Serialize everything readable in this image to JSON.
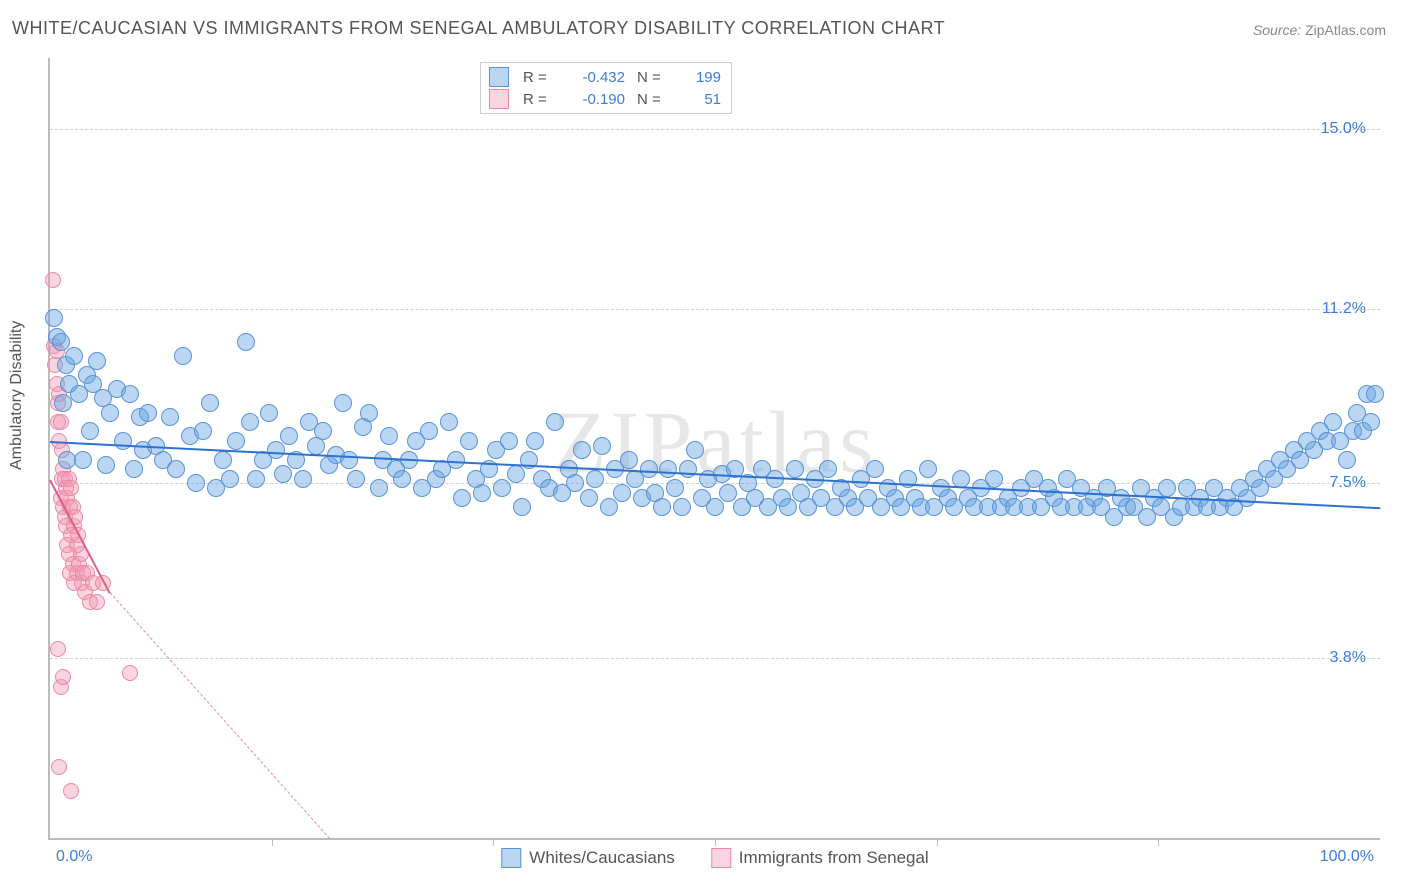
{
  "title": "WHITE/CAUCASIAN VS IMMIGRANTS FROM SENEGAL AMBULATORY DISABILITY CORRELATION CHART",
  "source": {
    "label": "Source: ",
    "name": "ZipAtlas.com"
  },
  "watermark": "ZIPatlas",
  "axes": {
    "ylabel": "Ambulatory Disability",
    "xmin": 0.0,
    "xmax": 100.0,
    "ymin": 0.0,
    "ymax": 16.5,
    "xlabel_min": "0.0%",
    "xlabel_max": "100.0%",
    "yticks": [
      {
        "v": 3.8,
        "label": "3.8%"
      },
      {
        "v": 7.5,
        "label": "7.5%"
      },
      {
        "v": 11.2,
        "label": "11.2%"
      },
      {
        "v": 15.0,
        "label": "15.0%"
      }
    ],
    "xticks": [
      16.67,
      33.33,
      50.0,
      66.67,
      83.33
    ],
    "grid_color": "#d0d0d0",
    "axis_color": "#bbbbbb"
  },
  "series": {
    "blue": {
      "label": "Whites/Caucasians",
      "fill": "rgba(103,163,226,0.45)",
      "stroke": "#5a94d6",
      "radius": 9,
      "R": "-0.432",
      "N": "199",
      "reg": {
        "x1": 0,
        "y1": 8.4,
        "x2": 100,
        "y2": 7.0,
        "color": "#2d72cf"
      }
    },
    "pink": {
      "label": "Immigrants from Senegal",
      "fill": "rgba(244,153,178,0.42)",
      "stroke": "#e989a6",
      "radius": 8,
      "R": "-0.190",
      "N": "51",
      "reg_solid": {
        "x1": 0,
        "y1": 7.6,
        "x2": 4.5,
        "y2": 5.2,
        "color": "#e05d87"
      },
      "reg_dash": {
        "x1": 4.5,
        "y1": 5.2,
        "x2": 21,
        "y2": 0.0,
        "color": "#e989a6"
      }
    }
  },
  "style": {
    "plot_bg": "#ffffff",
    "tick_label_color": "#3b7dd8",
    "title_color": "#555555",
    "label_fontsize": 16,
    "title_fontsize": 18
  },
  "blue_points": [
    [
      0.3,
      11.0
    ],
    [
      0.5,
      10.6
    ],
    [
      0.8,
      10.5
    ],
    [
      1.0,
      9.2
    ],
    [
      1.2,
      10.0
    ],
    [
      1.3,
      8.0
    ],
    [
      1.4,
      9.6
    ],
    [
      1.8,
      10.2
    ],
    [
      2.2,
      9.4
    ],
    [
      2.5,
      8.0
    ],
    [
      2.8,
      9.8
    ],
    [
      3.0,
      8.6
    ],
    [
      3.2,
      9.6
    ],
    [
      3.5,
      10.1
    ],
    [
      4.0,
      9.3
    ],
    [
      4.2,
      7.9
    ],
    [
      4.5,
      9.0
    ],
    [
      5.0,
      9.5
    ],
    [
      5.5,
      8.4
    ],
    [
      6.0,
      9.4
    ],
    [
      6.3,
      7.8
    ],
    [
      6.8,
      8.9
    ],
    [
      7.0,
      8.2
    ],
    [
      7.4,
      9.0
    ],
    [
      8.0,
      8.3
    ],
    [
      8.5,
      8.0
    ],
    [
      9.0,
      8.9
    ],
    [
      9.5,
      7.8
    ],
    [
      10.0,
      10.2
    ],
    [
      10.5,
      8.5
    ],
    [
      11.0,
      7.5
    ],
    [
      11.5,
      8.6
    ],
    [
      12.0,
      9.2
    ],
    [
      12.5,
      7.4
    ],
    [
      13.0,
      8.0
    ],
    [
      13.5,
      7.6
    ],
    [
      14.0,
      8.4
    ],
    [
      14.7,
      10.5
    ],
    [
      15.0,
      8.8
    ],
    [
      15.5,
      7.6
    ],
    [
      16.0,
      8.0
    ],
    [
      16.5,
      9.0
    ],
    [
      17.0,
      8.2
    ],
    [
      17.5,
      7.7
    ],
    [
      18.0,
      8.5
    ],
    [
      18.5,
      8.0
    ],
    [
      19.0,
      7.6
    ],
    [
      19.5,
      8.8
    ],
    [
      20.0,
      8.3
    ],
    [
      20.5,
      8.6
    ],
    [
      21.0,
      7.9
    ],
    [
      21.5,
      8.1
    ],
    [
      22.0,
      9.2
    ],
    [
      22.5,
      8.0
    ],
    [
      23.0,
      7.6
    ],
    [
      23.5,
      8.7
    ],
    [
      24.0,
      9.0
    ],
    [
      24.7,
      7.4
    ],
    [
      25.0,
      8.0
    ],
    [
      25.5,
      8.5
    ],
    [
      26.0,
      7.8
    ],
    [
      26.5,
      7.6
    ],
    [
      27.0,
      8.0
    ],
    [
      27.5,
      8.4
    ],
    [
      28.0,
      7.4
    ],
    [
      28.5,
      8.6
    ],
    [
      29.0,
      7.6
    ],
    [
      29.5,
      7.8
    ],
    [
      30.0,
      8.8
    ],
    [
      30.5,
      8.0
    ],
    [
      31.0,
      7.2
    ],
    [
      31.5,
      8.4
    ],
    [
      32.0,
      7.6
    ],
    [
      32.5,
      7.3
    ],
    [
      33.0,
      7.8
    ],
    [
      33.5,
      8.2
    ],
    [
      34.0,
      7.4
    ],
    [
      34.5,
      8.4
    ],
    [
      35.0,
      7.7
    ],
    [
      35.5,
      7.0
    ],
    [
      36.0,
      8.0
    ],
    [
      36.5,
      8.4
    ],
    [
      37.0,
      7.6
    ],
    [
      37.5,
      7.4
    ],
    [
      38.0,
      8.8
    ],
    [
      38.5,
      7.3
    ],
    [
      39.0,
      7.8
    ],
    [
      39.5,
      7.5
    ],
    [
      40.0,
      8.2
    ],
    [
      40.5,
      7.2
    ],
    [
      41.0,
      7.6
    ],
    [
      41.5,
      8.3
    ],
    [
      42.0,
      7.0
    ],
    [
      42.5,
      7.8
    ],
    [
      43.0,
      7.3
    ],
    [
      43.5,
      8.0
    ],
    [
      44.0,
      7.6
    ],
    [
      44.5,
      7.2
    ],
    [
      45.0,
      7.8
    ],
    [
      45.5,
      7.3
    ],
    [
      46.0,
      7.0
    ],
    [
      46.5,
      7.8
    ],
    [
      47.0,
      7.4
    ],
    [
      47.5,
      7.0
    ],
    [
      48.0,
      7.8
    ],
    [
      48.5,
      8.2
    ],
    [
      49.0,
      7.2
    ],
    [
      49.5,
      7.6
    ],
    [
      50.0,
      7.0
    ],
    [
      50.5,
      7.7
    ],
    [
      51.0,
      7.3
    ],
    [
      51.5,
      7.8
    ],
    [
      52.0,
      7.0
    ],
    [
      52.5,
      7.5
    ],
    [
      53.0,
      7.2
    ],
    [
      53.5,
      7.8
    ],
    [
      54.0,
      7.0
    ],
    [
      54.5,
      7.6
    ],
    [
      55.0,
      7.2
    ],
    [
      55.5,
      7.0
    ],
    [
      56.0,
      7.8
    ],
    [
      56.5,
      7.3
    ],
    [
      57.0,
      7.0
    ],
    [
      57.5,
      7.6
    ],
    [
      58.0,
      7.2
    ],
    [
      58.5,
      7.8
    ],
    [
      59.0,
      7.0
    ],
    [
      59.5,
      7.4
    ],
    [
      60.0,
      7.2
    ],
    [
      60.5,
      7.0
    ],
    [
      61.0,
      7.6
    ],
    [
      61.5,
      7.2
    ],
    [
      62.0,
      7.8
    ],
    [
      62.5,
      7.0
    ],
    [
      63.0,
      7.4
    ],
    [
      63.5,
      7.2
    ],
    [
      64.0,
      7.0
    ],
    [
      64.5,
      7.6
    ],
    [
      65.0,
      7.2
    ],
    [
      65.5,
      7.0
    ],
    [
      66.0,
      7.8
    ],
    [
      66.5,
      7.0
    ],
    [
      67.0,
      7.4
    ],
    [
      67.5,
      7.2
    ],
    [
      68.0,
      7.0
    ],
    [
      68.5,
      7.6
    ],
    [
      69.0,
      7.2
    ],
    [
      69.5,
      7.0
    ],
    [
      70.0,
      7.4
    ],
    [
      70.5,
      7.0
    ],
    [
      71.0,
      7.6
    ],
    [
      71.5,
      7.0
    ],
    [
      72.0,
      7.2
    ],
    [
      72.5,
      7.0
    ],
    [
      73.0,
      7.4
    ],
    [
      73.5,
      7.0
    ],
    [
      74.0,
      7.6
    ],
    [
      74.5,
      7.0
    ],
    [
      75.0,
      7.4
    ],
    [
      75.5,
      7.2
    ],
    [
      76.0,
      7.0
    ],
    [
      76.5,
      7.6
    ],
    [
      77.0,
      7.0
    ],
    [
      77.5,
      7.4
    ],
    [
      78.0,
      7.0
    ],
    [
      78.5,
      7.2
    ],
    [
      79.0,
      7.0
    ],
    [
      79.5,
      7.4
    ],
    [
      80.0,
      6.8
    ],
    [
      80.5,
      7.2
    ],
    [
      81.0,
      7.0
    ],
    [
      81.5,
      7.0
    ],
    [
      82.0,
      7.4
    ],
    [
      82.5,
      6.8
    ],
    [
      83.0,
      7.2
    ],
    [
      83.5,
      7.0
    ],
    [
      84.0,
      7.4
    ],
    [
      84.5,
      6.8
    ],
    [
      85.0,
      7.0
    ],
    [
      85.5,
      7.4
    ],
    [
      86.0,
      7.0
    ],
    [
      86.5,
      7.2
    ],
    [
      87.0,
      7.0
    ],
    [
      87.5,
      7.4
    ],
    [
      88.0,
      7.0
    ],
    [
      88.5,
      7.2
    ],
    [
      89.0,
      7.0
    ],
    [
      89.5,
      7.4
    ],
    [
      90.0,
      7.2
    ],
    [
      90.5,
      7.6
    ],
    [
      91.0,
      7.4
    ],
    [
      91.5,
      7.8
    ],
    [
      92.0,
      7.6
    ],
    [
      92.5,
      8.0
    ],
    [
      93.0,
      7.8
    ],
    [
      93.5,
      8.2
    ],
    [
      94.0,
      8.0
    ],
    [
      94.5,
      8.4
    ],
    [
      95.0,
      8.2
    ],
    [
      95.5,
      8.6
    ],
    [
      96.0,
      8.4
    ],
    [
      96.5,
      8.8
    ],
    [
      97.0,
      8.4
    ],
    [
      97.5,
      8.0
    ],
    [
      98.0,
      8.6
    ],
    [
      98.3,
      9.0
    ],
    [
      98.7,
      8.6
    ],
    [
      99.0,
      9.4
    ],
    [
      99.3,
      8.8
    ],
    [
      99.6,
      9.4
    ]
  ],
  "pink_points": [
    [
      0.2,
      11.8
    ],
    [
      0.3,
      10.4
    ],
    [
      0.4,
      10.0
    ],
    [
      0.5,
      10.3
    ],
    [
      0.5,
      9.6
    ],
    [
      0.6,
      9.2
    ],
    [
      0.6,
      8.8
    ],
    [
      0.7,
      9.4
    ],
    [
      0.7,
      8.4
    ],
    [
      0.8,
      8.8
    ],
    [
      0.8,
      7.2
    ],
    [
      0.9,
      8.2
    ],
    [
      0.9,
      7.6
    ],
    [
      1.0,
      7.8
    ],
    [
      1.0,
      7.0
    ],
    [
      1.1,
      7.6
    ],
    [
      1.1,
      6.8
    ],
    [
      1.2,
      7.4
    ],
    [
      1.2,
      6.6
    ],
    [
      1.3,
      7.2
    ],
    [
      1.3,
      6.2
    ],
    [
      1.4,
      7.6
    ],
    [
      1.4,
      6.0
    ],
    [
      1.5,
      7.0
    ],
    [
      1.5,
      5.6
    ],
    [
      1.6,
      7.4
    ],
    [
      1.6,
      6.4
    ],
    [
      1.7,
      7.0
    ],
    [
      1.7,
      5.8
    ],
    [
      1.8,
      6.6
    ],
    [
      1.8,
      5.4
    ],
    [
      1.9,
      6.8
    ],
    [
      2.0,
      6.2
    ],
    [
      2.0,
      5.6
    ],
    [
      2.1,
      6.4
    ],
    [
      2.2,
      5.8
    ],
    [
      2.3,
      6.0
    ],
    [
      2.4,
      5.4
    ],
    [
      2.5,
      5.6
    ],
    [
      2.6,
      5.2
    ],
    [
      2.8,
      5.6
    ],
    [
      3.0,
      5.0
    ],
    [
      3.2,
      5.4
    ],
    [
      3.5,
      5.0
    ],
    [
      4.0,
      5.4
    ],
    [
      0.6,
      4.0
    ],
    [
      0.8,
      3.2
    ],
    [
      1.0,
      3.4
    ],
    [
      6.0,
      3.5
    ],
    [
      0.7,
      1.5
    ],
    [
      1.6,
      1.0
    ]
  ]
}
